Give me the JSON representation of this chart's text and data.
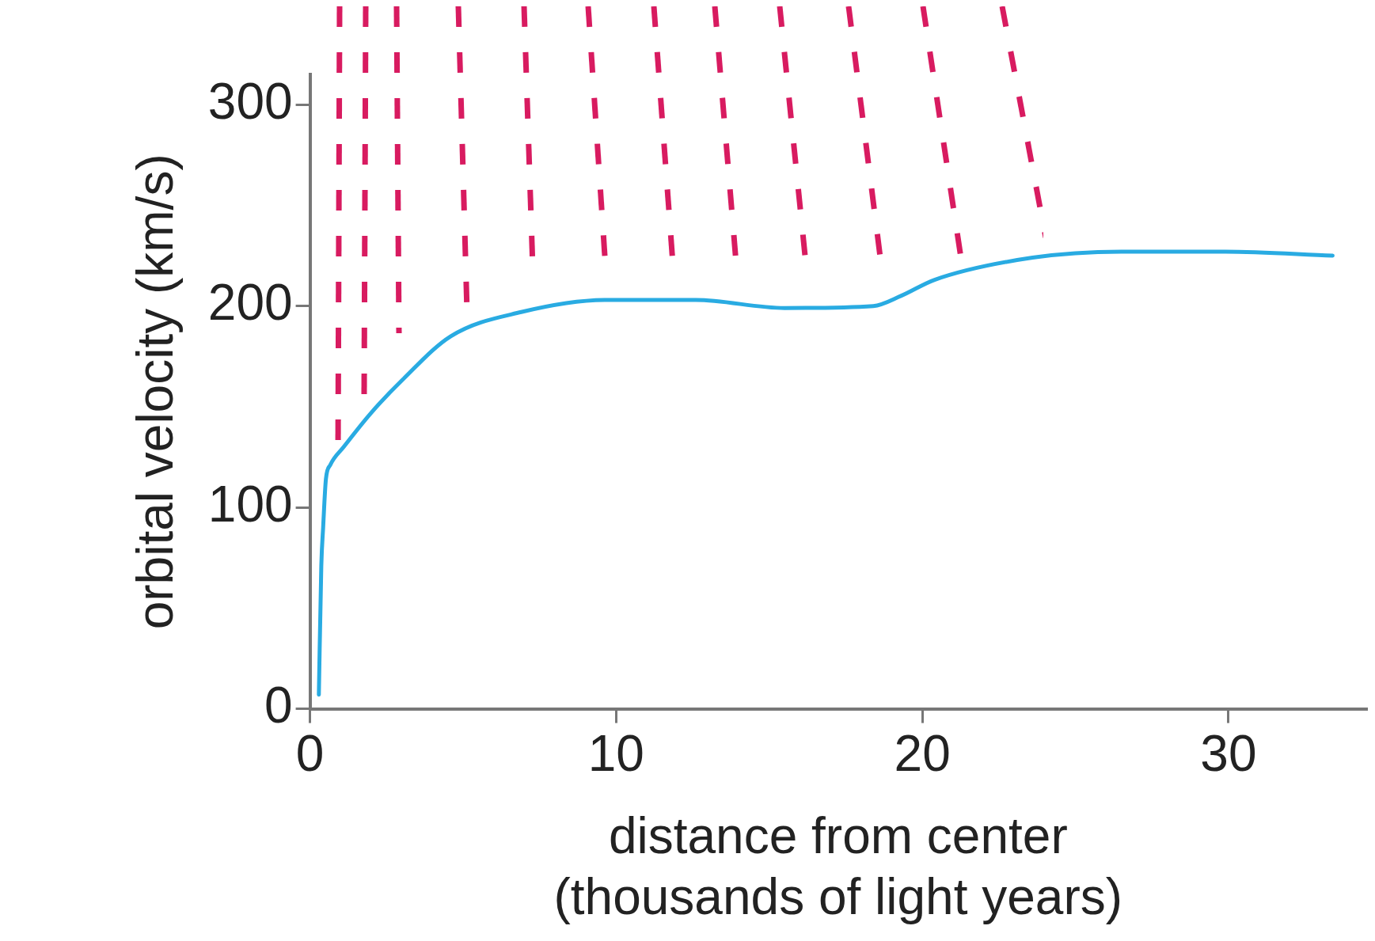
{
  "chart_data": {
    "type": "line",
    "xlabel": "distance from center\n(thousands of light years)",
    "ylabel": "orbital velocity (km/s)",
    "series": [
      {
        "color": "#29abe2",
        "x": [
          0.29,
          0.37,
          0.43,
          0.52,
          0.66,
          1.1,
          2.0,
          3.0,
          4.6,
          6.9,
          9.7,
          12.6,
          15.5,
          18.4,
          19.3,
          20.4,
          23.6,
          26.5,
          29.9,
          33.4
        ],
        "values": [
          7,
          71,
          90,
          114,
          121,
          130,
          147,
          163,
          185,
          197,
          203,
          203,
          199,
          200,
          205,
          213,
          224,
          227,
          227,
          225
        ]
      }
    ],
    "xlim": [
      0,
      34.5
    ],
    "xticks": [
      0,
      10,
      20,
      30
    ],
    "ylim": [
      0,
      315
    ],
    "yticks": [
      0,
      100,
      200,
      300
    ],
    "grid": false,
    "legend": false,
    "marker": "none",
    "line_style": "solid"
  }
}
